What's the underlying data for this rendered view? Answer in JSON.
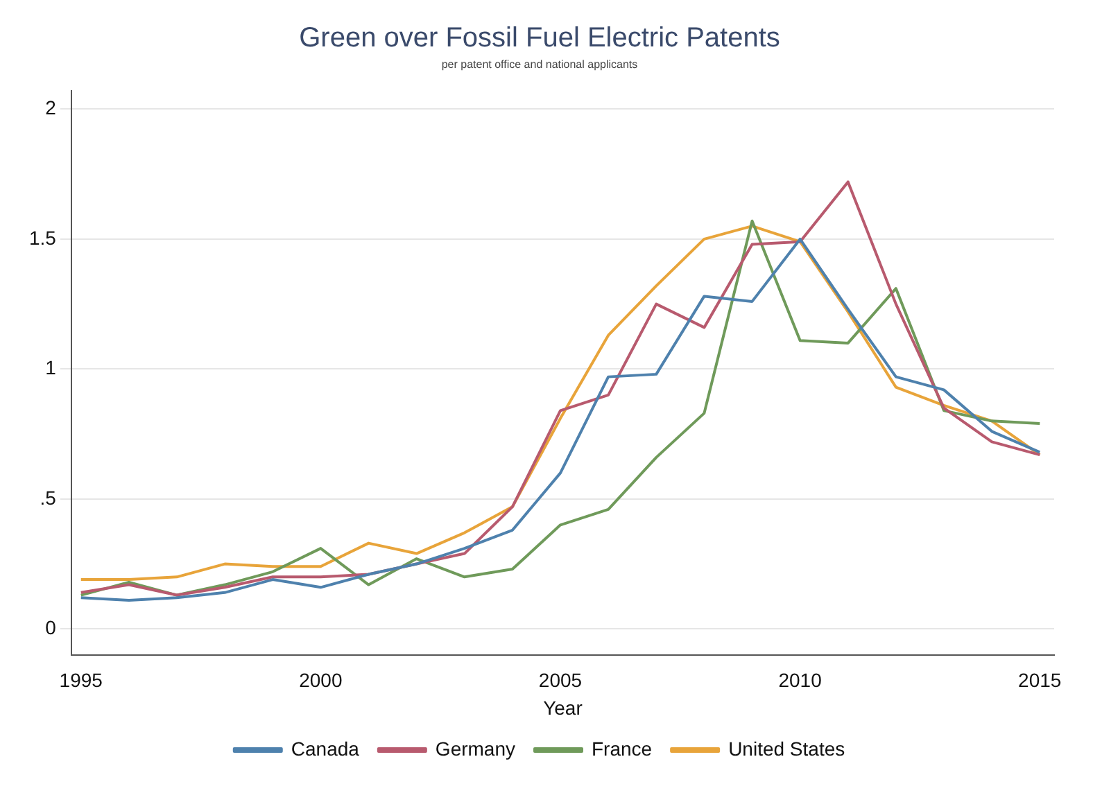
{
  "chart_data": {
    "type": "line",
    "title": "Green over Fossil Fuel Electric Patents",
    "subtitle": "per patent office and national applicants",
    "xlabel": "Year",
    "x": [
      1995,
      1996,
      1997,
      1998,
      1999,
      2000,
      2001,
      2002,
      2003,
      2004,
      2005,
      2006,
      2007,
      2008,
      2009,
      2010,
      2011,
      2012,
      2013,
      2014,
      2015
    ],
    "series": [
      {
        "name": "Canada",
        "color": "#4e81ad",
        "values": [
          0.12,
          0.11,
          0.12,
          0.14,
          0.19,
          0.16,
          0.21,
          0.25,
          0.31,
          0.38,
          0.6,
          0.97,
          0.98,
          1.28,
          1.26,
          1.5,
          1.23,
          0.97,
          0.92,
          0.76,
          0.68
        ]
      },
      {
        "name": "Germany",
        "color": "#b85a6e",
        "values": [
          0.14,
          0.17,
          0.13,
          0.16,
          0.2,
          0.2,
          0.21,
          0.25,
          0.29,
          0.47,
          0.84,
          0.9,
          1.25,
          1.16,
          1.48,
          1.49,
          1.72,
          1.25,
          0.85,
          0.72,
          0.67
        ]
      },
      {
        "name": "France",
        "color": "#6f9a5a",
        "values": [
          0.13,
          0.18,
          0.13,
          0.17,
          0.22,
          0.31,
          0.17,
          0.27,
          0.2,
          0.23,
          0.4,
          0.46,
          0.66,
          0.83,
          1.57,
          1.11,
          1.1,
          1.31,
          0.84,
          0.8,
          0.79
        ]
      },
      {
        "name": "United States",
        "color": "#e8a43a",
        "values": [
          0.19,
          0.19,
          0.2,
          0.25,
          0.24,
          0.24,
          0.33,
          0.29,
          0.37,
          0.47,
          0.81,
          1.13,
          1.32,
          1.5,
          1.55,
          1.49,
          1.22,
          0.93,
          0.86,
          0.8,
          0.67
        ]
      }
    ],
    "xlim": [
      1994.8,
      2015.3
    ],
    "xticks": [
      1995,
      2000,
      2005,
      2010,
      2015
    ],
    "ylim": [
      -0.1,
      2.07
    ],
    "yticks": [
      0,
      {
        "value": 0.5,
        "label": ".5"
      },
      1,
      1.5,
      2
    ],
    "grid": "y",
    "legend": "bottom",
    "marker": "none",
    "line_style": "solid"
  }
}
